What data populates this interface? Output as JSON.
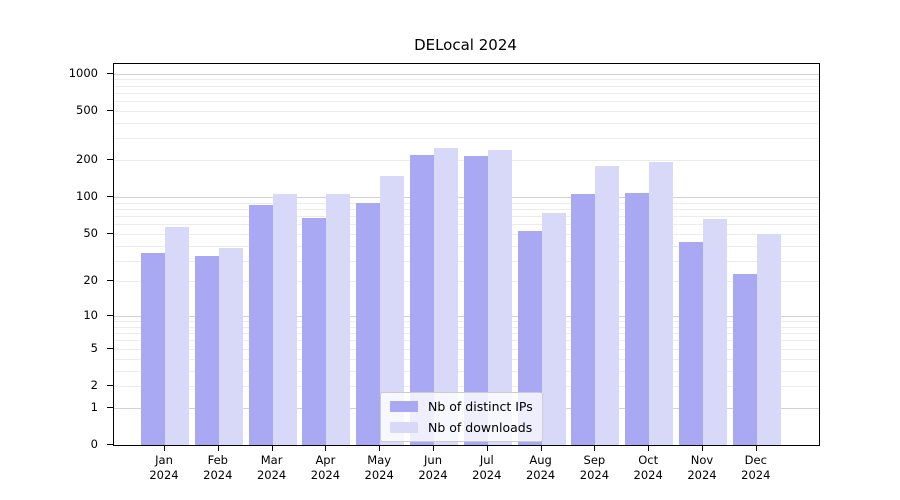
{
  "title": "DELocal 2024",
  "chart_data": {
    "type": "bar",
    "title": "DELocal 2024",
    "yscale": "log1p",
    "grid": "both",
    "legend_position": "lower center",
    "categories": [
      "Jan",
      "Feb",
      "Mar",
      "Apr",
      "May",
      "Jun",
      "Jul",
      "Aug",
      "Sep",
      "Oct",
      "Nov",
      "Dec"
    ],
    "year_label": "2024",
    "series": [
      {
        "name": "Nb of distinct IPs",
        "color": "#a9a9f3",
        "values": [
          35,
          33,
          86,
          68,
          90,
          219,
          216,
          53,
          105,
          107,
          43,
          23
        ]
      },
      {
        "name": "Nb of downloads",
        "color": "#d8d8f8",
        "values": [
          57,
          38,
          106,
          106,
          149,
          253,
          241,
          74,
          180,
          193,
          66,
          50
        ]
      }
    ],
    "yticks": [
      0,
      1,
      2,
      5,
      10,
      20,
      50,
      100,
      200,
      500,
      1000
    ],
    "ylim": [
      0,
      1200
    ],
    "xlabel": "",
    "ylabel": ""
  },
  "colors": {
    "background": "#ffffff",
    "axis": "#000000",
    "grid_major": "#d2d2d2",
    "grid_minor": "#ececec",
    "legend_border": "#cccccc",
    "legend_bg": "rgba(255,255,255,0.8)"
  }
}
